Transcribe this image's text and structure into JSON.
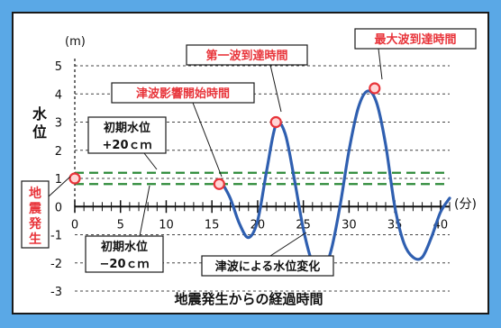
{
  "chart_data": {
    "type": "line",
    "x_unit": "(分)",
    "y_unit": "(m)",
    "ylabel": "水位",
    "xlabel": "地震発生からの経過時間",
    "xlim": [
      0,
      41
    ],
    "ylim": [
      -3,
      5
    ],
    "x_ticks": [
      0,
      5,
      10,
      15,
      20,
      25,
      30,
      35,
      40
    ],
    "y_ticks": [
      5,
      4,
      3,
      2,
      1,
      0,
      -1,
      -2,
      -3
    ],
    "minor_x_step": 1,
    "grid": "horizontal dashed",
    "series": [
      {
        "name": "津波による水位変化",
        "color": "#2f5fb0",
        "x": [
          16,
          17,
          18,
          19,
          20,
          21,
          22,
          23,
          24,
          25,
          26,
          27,
          28,
          29,
          30,
          31,
          32,
          33,
          34,
          35,
          36,
          37,
          38,
          39,
          40,
          41
        ],
        "y": [
          0.9,
          0.3,
          -0.6,
          -1.1,
          -0.5,
          1.3,
          2.9,
          2.6,
          1.0,
          -0.8,
          -2.0,
          -2.3,
          -1.6,
          0.0,
          2.0,
          3.5,
          4.1,
          3.7,
          2.2,
          0.0,
          -1.3,
          -1.8,
          -1.8,
          -1.1,
          -0.2,
          0.3
        ]
      }
    ],
    "thresholds": [
      {
        "name": "初期水位+20cm",
        "y": 1.2,
        "color": "#2e8b3a"
      },
      {
        "name": "初期水位-20cm",
        "y": 0.8,
        "color": "#2e8b3a"
      }
    ],
    "markers": [
      {
        "name": "地震発生",
        "x": 0,
        "y": 1.0
      },
      {
        "name": "津波影響開始時間",
        "x": 15.8,
        "y": 0.8
      },
      {
        "name": "第一波到達時間",
        "x": 22,
        "y": 3.0
      },
      {
        "name": "最大波到達時間",
        "x": 32.8,
        "y": 4.2
      }
    ],
    "annotations": {
      "quake": "地震発生",
      "start": "津波影響開始時間",
      "first": "第一波到達時間",
      "max": "最大波到達時間",
      "plus_line1": "初期水位",
      "plus_line2": "+20ｃｍ",
      "minus_line1": "初期水位",
      "minus_line2": "−20ｃｍ",
      "change": "津波による水位変化"
    },
    "colors": {
      "curve": "#2f5fb0",
      "threshold": "#2e8b3a",
      "marker": "#e8343a",
      "annotation_text_red": "#e8343a",
      "background": "#5aa8e6"
    }
  }
}
